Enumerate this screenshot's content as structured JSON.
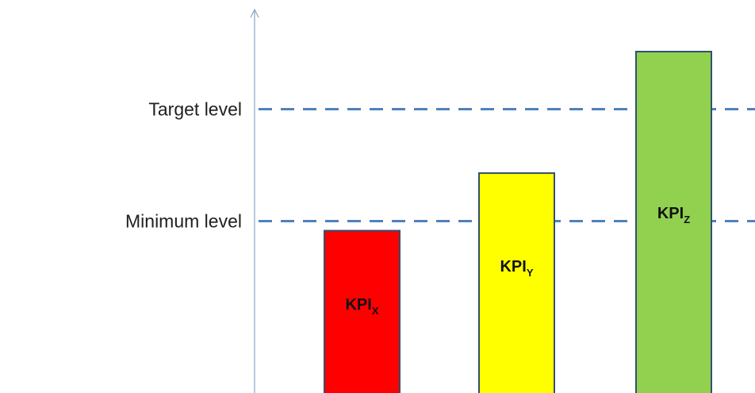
{
  "chart_data": {
    "type": "bar",
    "categories": [
      "KPI_X",
      "KPI_Y",
      "KPI_Z"
    ],
    "values": [
      5.2,
      7.0,
      10.8
    ],
    "bar_labels": [
      {
        "base": "KPI",
        "sub": "X"
      },
      {
        "base": "KPI",
        "sub": "Y"
      },
      {
        "base": "KPI",
        "sub": "Z"
      }
    ],
    "bar_colors": [
      "#ff0000",
      "#ffff00",
      "#92d050"
    ],
    "bar_outline": "#31506f",
    "reference_lines": [
      {
        "label": "Target level",
        "value": 9.0
      },
      {
        "label": "Minimum level",
        "value": 5.5
      }
    ],
    "reference_line_color": "#4f81bd",
    "axis_color": "#8eaacb",
    "ylim": [
      0,
      12
    ],
    "grid": false,
    "legend": "none"
  }
}
